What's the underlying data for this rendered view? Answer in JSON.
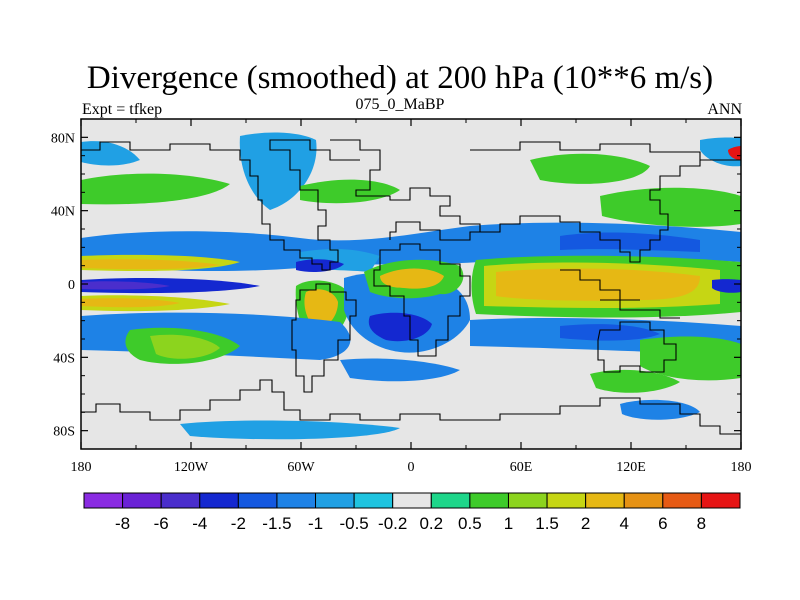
{
  "title": "Divergence (smoothed) at 200 hPa (10**6 m/s)",
  "left_label": "Expt = tfkep",
  "center_label": "075_0_MaBP",
  "right_label": "ANN",
  "lat_ticks": [
    {
      "label": "80N",
      "lat": 80
    },
    {
      "label": "40N",
      "lat": 40
    },
    {
      "label": "0",
      "lat": 0
    },
    {
      "label": "40S",
      "lat": -40
    },
    {
      "label": "80S",
      "lat": -80
    }
  ],
  "lon_ticks": [
    {
      "label": "180",
      "lon": -180
    },
    {
      "label": "120W",
      "lon": -120
    },
    {
      "label": "60W",
      "lon": -60
    },
    {
      "label": "0",
      "lon": 0
    },
    {
      "label": "60E",
      "lon": 60
    },
    {
      "label": "120E",
      "lon": 120
    },
    {
      "label": "180",
      "lon": 180
    }
  ],
  "colorbar": {
    "colors": [
      "#8a2be2",
      "#6a22d6",
      "#4a2ecc",
      "#1428d0",
      "#1458e0",
      "#1e82e6",
      "#20a0e4",
      "#1fc4e0",
      "#e6e6e6",
      "#1ed68a",
      "#3ecb2a",
      "#8cd41e",
      "#c6d614",
      "#e6b814",
      "#e69214",
      "#e65a14",
      "#e61414"
    ],
    "labels": [
      "-8",
      "-6",
      "-4",
      "-2",
      "-1.5",
      "-1",
      "-0.5",
      "-0.2",
      "0.2",
      "0.5",
      "1",
      "1.5",
      "2",
      "4",
      "6",
      "8"
    ]
  },
  "chart_data": {
    "type": "heatmap",
    "variable": "Divergence (smoothed) at 200 hPa",
    "units": "10**6 m/s",
    "levels": [
      -8,
      -6,
      -4,
      -2,
      -1.5,
      -1,
      -0.5,
      -0.2,
      0.2,
      0.5,
      1,
      1.5,
      2,
      4,
      6,
      8
    ],
    "lon_range": [
      -180,
      180
    ],
    "lat_range": [
      -90,
      90
    ],
    "features": [
      {
        "lon": -155,
        "lat": 10,
        "wlon": 20,
        "wlat": 3,
        "value": 1.5
      },
      {
        "lon": -155,
        "lat": -5,
        "wlon": 18,
        "wlat": 3,
        "value": 2
      },
      {
        "lon": -160,
        "lat": 2,
        "wlon": 18,
        "wlat": 3,
        "value": -2
      },
      {
        "lon": -115,
        "lat": 10,
        "wlon": 25,
        "wlat": 4,
        "value": 1
      },
      {
        "lon": -70,
        "lat": -8,
        "wlon": 10,
        "wlat": 6,
        "value": 1.5
      },
      {
        "lon": -20,
        "lat": -3,
        "wlon": 12,
        "wlat": 8,
        "value": -2
      },
      {
        "lon": -40,
        "lat": -30,
        "wlon": 8,
        "wlat": 10,
        "value": -1.5
      },
      {
        "lon": 15,
        "lat": -6,
        "wlon": 22,
        "wlat": 10,
        "value": -4
      },
      {
        "lon": 45,
        "lat": -15,
        "wlon": 20,
        "wlat": 4,
        "value": 1
      },
      {
        "lon": 110,
        "lat": 4,
        "wlon": 60,
        "wlat": 8,
        "value": 2
      },
      {
        "lon": 175,
        "lat": -2,
        "wlon": 6,
        "wlat": 4,
        "value": -2
      },
      {
        "lon": -150,
        "lat": 52,
        "wlon": 10,
        "wlat": 8,
        "value": 0.5
      },
      {
        "lon": -120,
        "lat": 55,
        "wlon": 12,
        "wlat": 8,
        "value": -1
      },
      {
        "lon": -80,
        "lat": 50,
        "wlon": 10,
        "wlat": 8,
        "value": 0.5
      },
      {
        "lon": 10,
        "lat": 37,
        "wlon": 30,
        "wlat": 4,
        "value": -1
      },
      {
        "lon": 70,
        "lat": 38,
        "wlon": 30,
        "wlat": 5,
        "value": 0.5
      },
      {
        "lon": 120,
        "lat": 27,
        "wlon": 30,
        "wlat": 4,
        "value": -1
      },
      {
        "lon": -150,
        "lat": -30,
        "wlon": 18,
        "wlat": 6,
        "value": 1
      },
      {
        "lon": -110,
        "lat": -33,
        "wlon": 25,
        "wlat": 7,
        "value": -1
      },
      {
        "lon": 80,
        "lat": -25,
        "wlon": 25,
        "wlat": 7,
        "value": -1
      },
      {
        "lon": 150,
        "lat": -35,
        "wlon": 18,
        "wlat": 8,
        "value": 0.5
      },
      {
        "lon": 110,
        "lat": -62,
        "wlon": 20,
        "wlat": 5,
        "value": 0.5
      },
      {
        "lon": -60,
        "lat": -80,
        "wlon": 35,
        "wlat": 4,
        "value": -0.5
      }
    ]
  }
}
